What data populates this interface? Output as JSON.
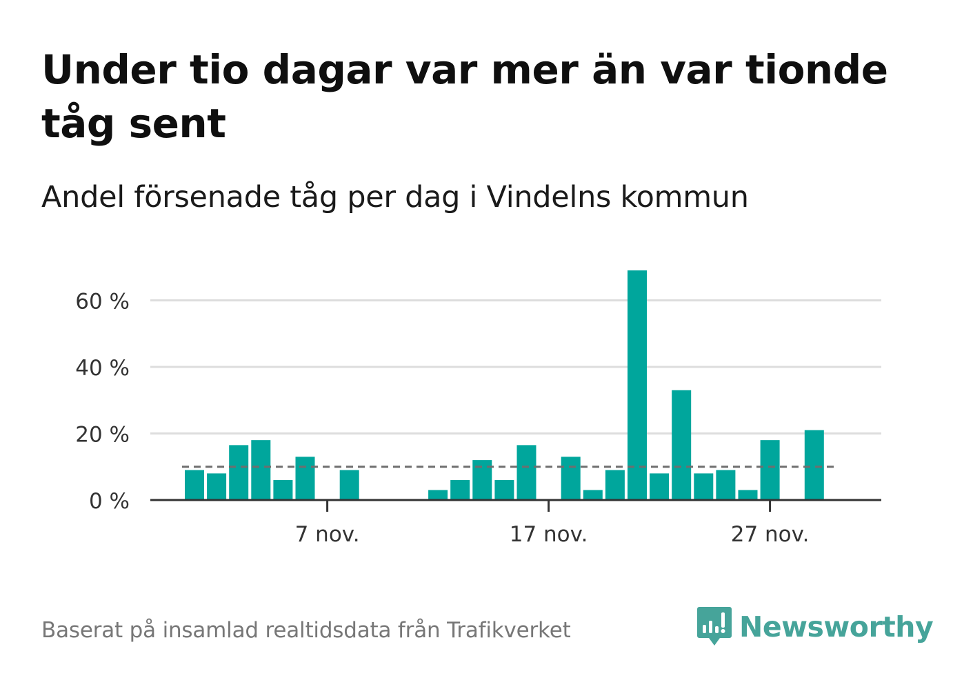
{
  "title": "Under tio dagar var mer än var tionde tåg sent",
  "subtitle": "Andel försenade tåg per dag i Vindelns kommun",
  "footer": {
    "source_note": "Baserat på insamlad realtidsdata från Trafikverket",
    "brand_name": "Newsworthy",
    "brand_logo_icon": "newsworthy-logo-icon"
  },
  "colors": {
    "bar": "#00a69c",
    "reference_line": "#6e6e6e",
    "grid": "#dddddd",
    "axis": "#333333",
    "brand": "#46a49a"
  },
  "chart_data": {
    "type": "bar",
    "x_dates": [
      "1 nov.",
      "2 nov.",
      "3 nov.",
      "4 nov.",
      "5 nov.",
      "6 nov.",
      "7 nov.",
      "8 nov.",
      "9 nov.",
      "10 nov.",
      "11 nov.",
      "12 nov.",
      "13 nov.",
      "14 nov.",
      "15 nov.",
      "16 nov.",
      "17 nov.",
      "18 nov.",
      "19 nov.",
      "20 nov.",
      "21 nov.",
      "22 nov.",
      "23 nov.",
      "24 nov.",
      "25 nov.",
      "26 nov.",
      "27 nov.",
      "28 nov.",
      "29 nov.",
      "30 nov."
    ],
    "values": [
      9,
      8,
      16.5,
      18,
      6,
      13,
      0,
      9,
      0,
      0,
      0,
      3,
      6,
      12,
      6,
      16.5,
      0,
      13,
      3,
      9,
      69,
      8,
      33,
      8,
      9,
      3,
      18,
      0,
      21,
      null
    ],
    "reference_value": 10,
    "x_tick_labels": [
      "7 nov.",
      "17 nov.",
      "27 nov."
    ],
    "y_ticks": [
      0,
      20,
      40,
      60
    ],
    "y_tick_labels": [
      "0 %",
      "20 %",
      "40 %",
      "60 %"
    ],
    "ylim": [
      0,
      72
    ],
    "grid": true,
    "legend": "none"
  }
}
